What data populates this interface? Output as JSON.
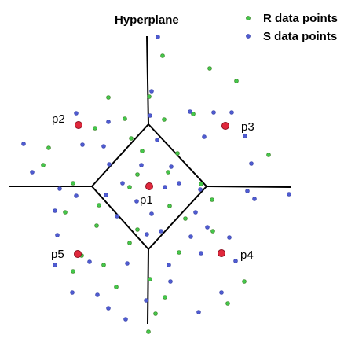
{
  "hyperplane_label": "Hyperplane",
  "legend": {
    "r_label": "R data points",
    "s_label": "S data points"
  },
  "query_points": [
    "p1",
    "p2",
    "p3",
    "p4",
    "p5"
  ],
  "colors": {
    "r_points": "#43c64a",
    "s_points": "#4e5bd1",
    "query_points": "#e0283c",
    "lines": "#000000",
    "background": "#ffffff"
  }
}
